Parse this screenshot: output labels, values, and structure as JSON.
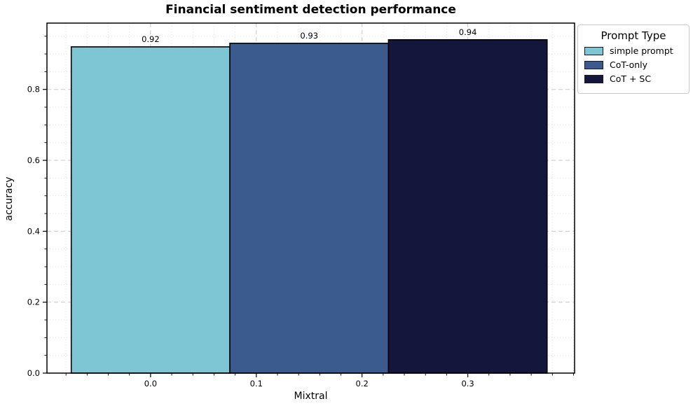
{
  "title": "Financial sentiment detection performance",
  "chart_data": {
    "type": "bar",
    "title": "Financial sentiment detection performance",
    "xlabel": "Mixtral",
    "ylabel": "accuracy",
    "categories": [
      "Mixtral"
    ],
    "series": [
      {
        "name": "simple prompt",
        "values": [
          0.92
        ],
        "color": "#7fc6d4"
      },
      {
        "name": "CoT-only",
        "values": [
          0.93
        ],
        "color": "#3b5b8f"
      },
      {
        "name": "CoT + SC",
        "values": [
          0.94
        ],
        "color": "#14173b"
      }
    ],
    "value_labels": [
      "0.92",
      "0.93",
      "0.94"
    ],
    "bar_centers": [
      0.0,
      0.15,
      0.3
    ],
    "bar_width": 0.15,
    "bar_edge_color": "#000000",
    "xlim": [
      -0.098,
      0.401
    ],
    "ylim": [
      0,
      0.987
    ],
    "x_ticks": [
      0.0,
      0.1,
      0.2,
      0.3
    ],
    "y_ticks": [
      0.0,
      0.2,
      0.4,
      0.6,
      0.8
    ],
    "x_minor_step": 0.02,
    "y_minor_step": 0.05,
    "grid": true,
    "grid_major_color": "#c9c9c9",
    "grid_minor_color": "#dcdcdc",
    "legend": {
      "title": "Prompt Type",
      "position": "upper right outside"
    }
  }
}
